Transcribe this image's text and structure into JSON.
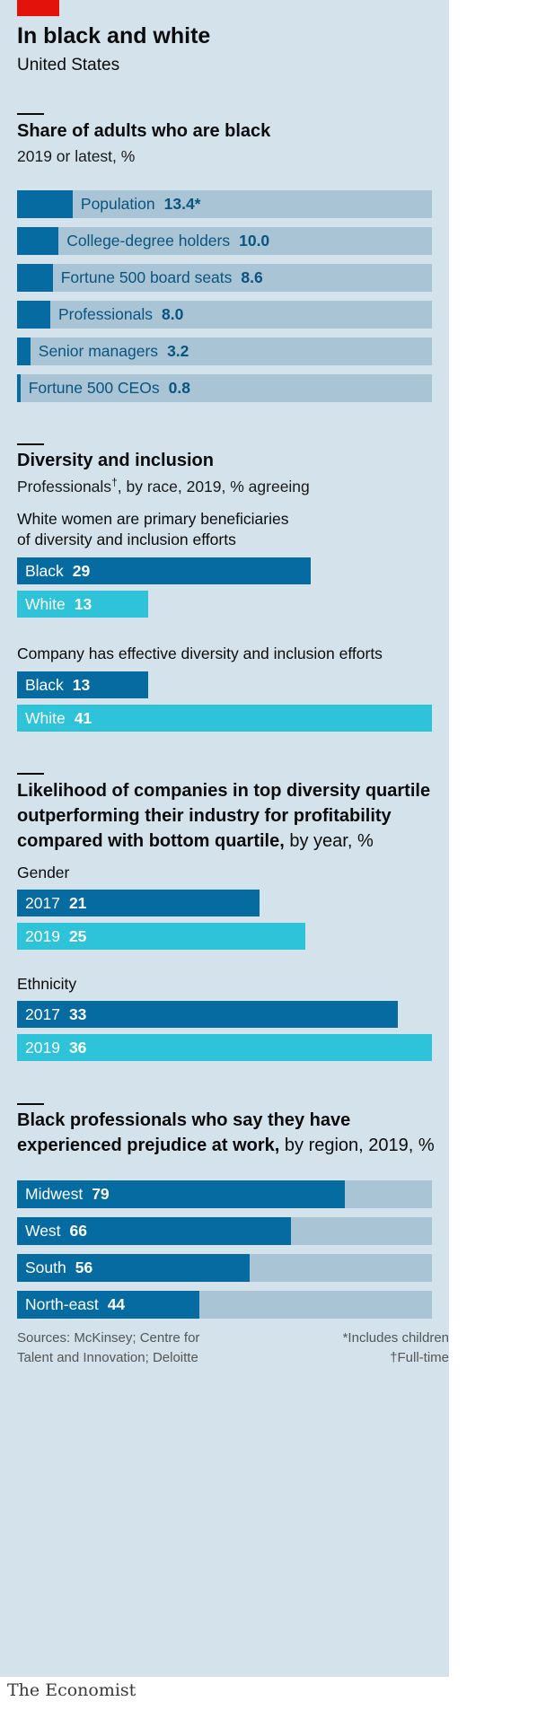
{
  "header": {
    "title": "In black and white",
    "subtitle": "United States"
  },
  "colors": {
    "dark_blue": "#066ba0",
    "cyan": "#2ec3d8",
    "track": "#a9c4d4",
    "panel": "#d4e2eb",
    "accent": "#e3120b"
  },
  "chart_data": [
    {
      "type": "bar",
      "title": "Share of adults who are black",
      "subtitle": "2019 or latest, %",
      "xlim": [
        0,
        100
      ],
      "categories": [
        "Population",
        "College-degree holders",
        "Fortune 500 board seats",
        "Professionals",
        "Senior managers",
        "Fortune 500 CEOs"
      ],
      "values": [
        13.4,
        10.0,
        8.6,
        8.0,
        3.2,
        0.8
      ],
      "value_labels": [
        "13.4*",
        "10.0",
        "8.6",
        "8.0",
        "3.2",
        "0.8"
      ]
    },
    {
      "type": "bar",
      "title": "Diversity and inclusion",
      "subtitle_main": "Professionals",
      "subtitle_mark": "†",
      "subtitle_rest": ", by race, 2019, % agreeing",
      "xlim": [
        0,
        41
      ],
      "groups": [
        {
          "label": "White women are primary beneficiaries of diversity and inclusion efforts",
          "label_lines": [
            "White women are primary beneficiaries",
            "of diversity and inclusion efforts"
          ],
          "bars": [
            {
              "name": "Black",
              "value": 29
            },
            {
              "name": "White",
              "value": 13
            }
          ]
        },
        {
          "label": "Company has effective diversity and inclusion efforts",
          "label_lines": [
            "Company has effective diversity and inclusion efforts"
          ],
          "bars": [
            {
              "name": "Black",
              "value": 13
            },
            {
              "name": "White",
              "value": 41
            }
          ]
        }
      ]
    },
    {
      "type": "bar",
      "title_bold_lines": [
        "Likelihood of companies in top diversity quartile",
        "outperforming their industry for profitability",
        "compared with bottom quartile,"
      ],
      "title_suffix": " by year, %",
      "xlim": [
        0,
        36
      ],
      "groups": [
        {
          "label": "Gender",
          "bars": [
            {
              "name": "2017",
              "value": 21
            },
            {
              "name": "2019",
              "value": 25
            }
          ]
        },
        {
          "label": "Ethnicity",
          "bars": [
            {
              "name": "2017",
              "value": 33
            },
            {
              "name": "2019",
              "value": 36
            }
          ]
        }
      ]
    },
    {
      "type": "bar",
      "title_bold_lines": [
        "Black professionals who say they have",
        "experienced prejudice at work,"
      ],
      "title_suffix": " by region, 2019, %",
      "xlim": [
        0,
        100
      ],
      "categories": [
        "Midwest",
        "West",
        "South",
        "North-east"
      ],
      "values": [
        79,
        66,
        56,
        44
      ]
    }
  ],
  "footer": {
    "sources_lines": [
      "Sources: McKinsey; Centre for",
      "Talent and Innovation; Deloitte"
    ],
    "notes": [
      "*Includes children",
      "†Full-time"
    ],
    "brand": "The Economist"
  }
}
